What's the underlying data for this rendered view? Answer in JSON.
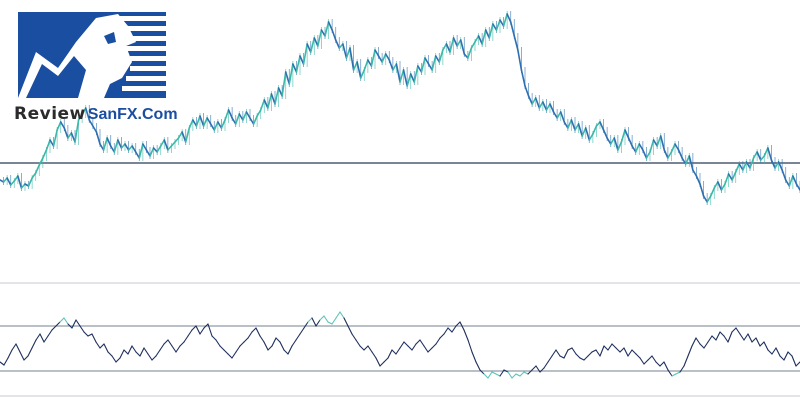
{
  "brand": {
    "logo_word": "Review",
    "logo_site": "SanFX.Com",
    "logo_color": "#1a4ea0"
  },
  "chart_data": [
    {
      "type": "line",
      "series": [
        {
          "values": [
            180,
            182,
            178,
            185,
            181,
            176,
            188,
            184,
            186,
            178,
            173,
            165,
            158,
            150,
            140,
            146,
            130,
            122,
            128,
            138,
            133,
            142,
            120,
            115,
            108,
            120,
            126,
            132,
            144,
            150,
            138,
            146,
            152,
            140,
            148,
            144,
            150,
            146,
            152,
            158,
            144,
            150,
            156,
            148,
            152,
            146,
            140,
            150,
            146,
            142,
            138,
            132,
            142,
            128,
            120,
            126,
            116,
            126,
            118,
            124,
            130,
            122,
            128,
            120,
            110,
            118,
            124,
            114,
            120,
            112,
            118,
            124,
            116,
            110,
            100,
            108,
            94,
            104,
            88,
            96,
            72,
            84,
            64,
            72,
            56,
            64,
            44,
            52,
            38,
            46,
            30,
            36,
            22,
            30,
            40,
            48,
            44,
            58,
            48,
            70,
            62,
            78,
            70,
            60,
            66,
            50,
            56,
            62,
            54,
            60,
            70,
            64,
            82,
            70,
            86,
            74,
            82,
            66,
            72,
            58,
            64,
            70,
            56,
            62,
            50,
            44,
            52,
            38,
            46,
            40,
            54,
            58,
            48,
            42,
            36,
            44,
            30,
            38,
            24,
            30,
            20,
            26,
            14,
            22,
            36,
            50,
            70,
            86,
            96,
            104,
            98,
            108,
            102,
            110,
            104,
            112,
            118,
            112,
            122,
            128,
            120,
            130,
            124,
            136,
            128,
            140,
            134,
            126,
            122,
            130,
            138,
            144,
            138,
            150,
            142,
            130,
            138,
            146,
            152,
            144,
            150,
            158,
            152,
            140,
            146,
            136,
            150,
            158,
            152,
            144,
            150,
            158,
            164,
            156,
            170,
            176,
            184,
            196,
            202,
            196,
            188,
            182,
            190,
            184,
            174,
            180,
            172,
            164,
            170,
            162,
            168,
            158,
            152,
            160,
            156,
            148,
            160,
            168,
            162,
            170,
            180,
            186,
            176,
            184,
            190
          ]
        }
      ],
      "reference_lines": [
        163
      ]
    },
    {
      "type": "line",
      "series": [
        {
          "values": [
            362,
            365,
            358,
            350,
            344,
            352,
            360,
            356,
            348,
            340,
            334,
            342,
            336,
            330,
            326,
            322,
            318,
            324,
            328,
            320,
            326,
            332,
            336,
            334,
            342,
            348,
            344,
            352,
            356,
            362,
            358,
            350,
            354,
            346,
            352,
            356,
            348,
            354,
            360,
            356,
            350,
            344,
            340,
            346,
            352,
            346,
            342,
            336,
            330,
            326,
            334,
            328,
            324,
            336,
            340,
            346,
            350,
            354,
            358,
            352,
            346,
            342,
            338,
            332,
            328,
            336,
            342,
            350,
            346,
            338,
            342,
            350,
            354,
            346,
            340,
            334,
            328,
            322,
            318,
            326,
            320,
            316,
            322,
            324,
            318,
            312,
            318,
            326,
            334,
            340,
            346,
            350,
            346,
            352,
            358,
            366,
            362,
            358,
            350,
            354,
            348,
            342,
            346,
            350,
            344,
            340,
            346,
            352,
            348,
            344,
            338,
            334,
            328,
            332,
            326,
            322,
            330,
            340,
            352,
            362,
            370,
            374,
            378,
            372,
            374,
            376,
            370,
            372,
            378,
            374,
            376,
            372,
            374,
            370,
            366,
            372,
            368,
            362,
            356,
            350,
            356,
            358,
            350,
            348,
            354,
            358,
            360,
            356,
            352,
            350,
            356,
            346,
            350,
            344,
            348,
            352,
            348,
            356,
            350,
            354,
            358,
            364,
            360,
            356,
            362,
            366,
            362,
            370,
            376,
            374,
            372,
            366,
            356,
            346,
            338,
            344,
            348,
            342,
            336,
            340,
            332,
            336,
            342,
            332,
            328,
            334,
            340,
            334,
            342,
            338,
            346,
            342,
            350,
            354,
            348,
            356,
            360,
            352,
            356,
            366,
            362
          ],
          "overbought_color": "#5dc9c0"
        }
      ],
      "levels": [
        326,
        371
      ],
      "boundary_lines": [
        283,
        396
      ]
    }
  ],
  "style": {
    "price_color": "#2e6fb0",
    "price_up_color": "#3ab8a8",
    "indicator_color": "#1c2e5e",
    "indicator_extreme_color": "#59c4b8",
    "level_line_color": "#8f9aa8",
    "ref_line_color": "#4d5d72"
  }
}
